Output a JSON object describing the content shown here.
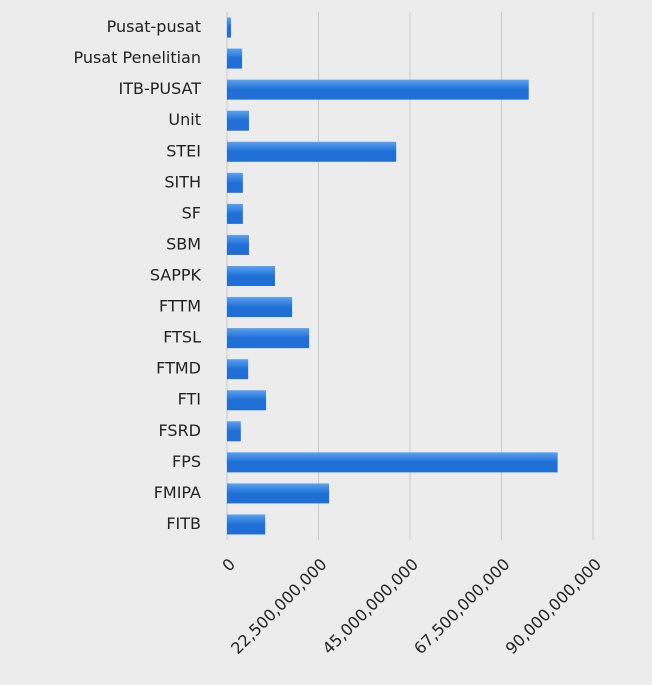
{
  "chart_data": {
    "type": "hbar",
    "categories": [
      "Pusat-pusat",
      "Pusat Penelitian",
      "ITB-PUSAT",
      "Unit",
      "STEI",
      "SITH",
      "SF",
      "SBM",
      "SAPPK",
      "FTTM",
      "FTSL",
      "FTMD",
      "FTI",
      "FSRD",
      "FPS",
      "FMIPA",
      "FITB"
    ],
    "values": [
      1000000000,
      3700000000,
      74200000000,
      5400000000,
      41600000000,
      3900000000,
      3900000000,
      5400000000,
      11800000000,
      16000000000,
      20200000000,
      5200000000,
      9600000000,
      3400000000,
      81300000000,
      25100000000,
      9400000000
    ],
    "color": "#1f6fd6",
    "xlim": [
      0,
      90000000000
    ],
    "xticks": [
      0,
      {
        "value": 22500000000,
        "label": "22,500,000,000"
      },
      {
        "value": 45000000000,
        "label": "45,000,000,000"
      },
      {
        "value": 67500000000,
        "label": "67,500,000,000"
      },
      {
        "value": 90000000000,
        "label": "90,000,000,000"
      }
    ],
    "grid": true
  }
}
